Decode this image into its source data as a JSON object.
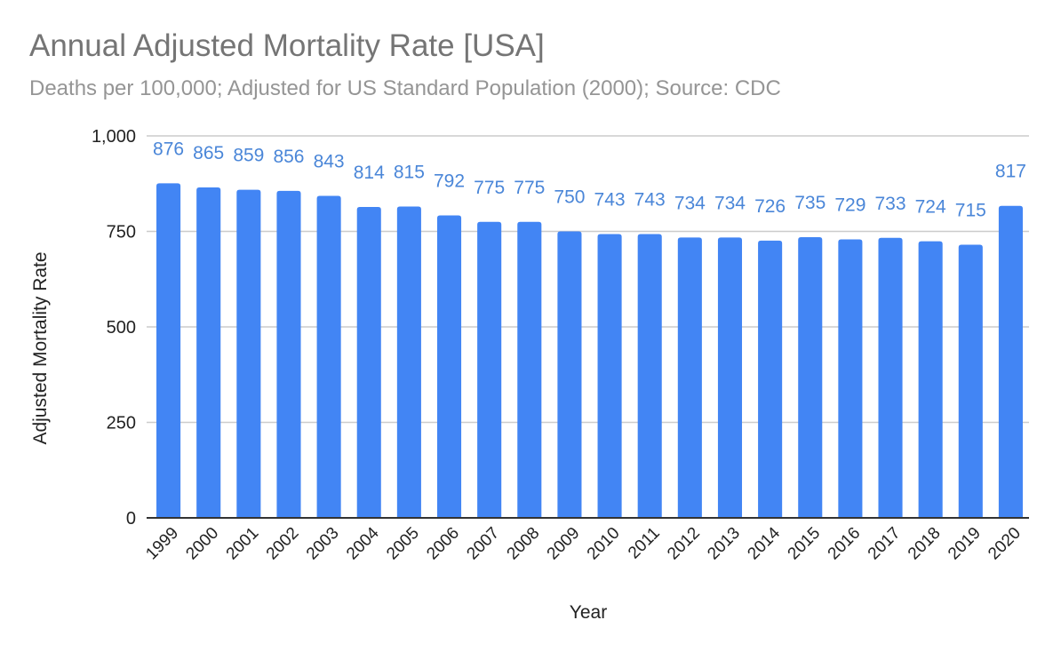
{
  "chart_data": {
    "type": "bar",
    "title": "Annual Adjusted Mortality Rate [USA]",
    "subtitle": "Deaths per 100,000; Adjusted for US Standard Population (2000); Source: CDC",
    "xlabel": "Year",
    "ylabel": "Adjusted Mortality Rate",
    "ylim": [
      0,
      1000
    ],
    "yticks": [
      0,
      250,
      500,
      750,
      1000
    ],
    "ytick_labels": [
      "0",
      "250",
      "500",
      "750",
      "1,000"
    ],
    "grid": true,
    "legend": "none",
    "bar_color": "#4285f4",
    "label_color": "#4a86d8",
    "categories": [
      "1999",
      "2000",
      "2001",
      "2002",
      "2003",
      "2004",
      "2005",
      "2006",
      "2007",
      "2008",
      "2009",
      "2010",
      "2011",
      "2012",
      "2013",
      "2014",
      "2015",
      "2016",
      "2017",
      "2018",
      "2019",
      "2020"
    ],
    "values": [
      876,
      865,
      859,
      856,
      843,
      814,
      815,
      792,
      775,
      775,
      750,
      743,
      743,
      734,
      734,
      726,
      735,
      729,
      733,
      724,
      715,
      817
    ]
  }
}
